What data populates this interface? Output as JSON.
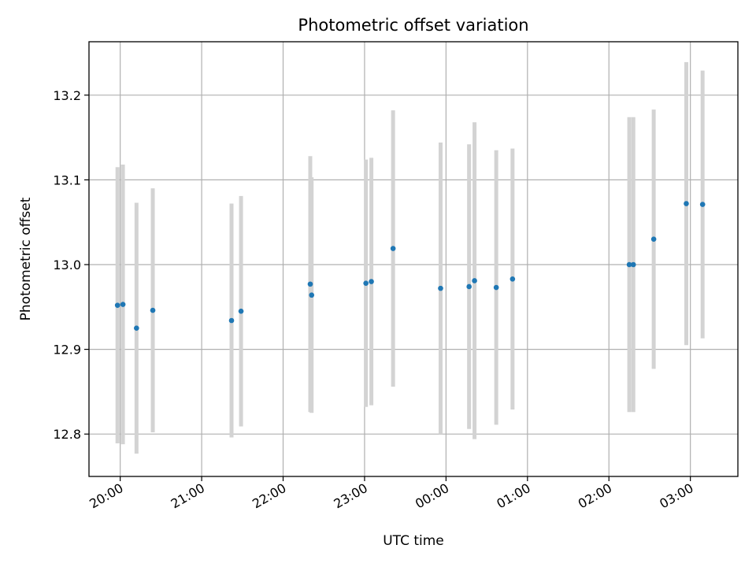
{
  "chart_data": {
    "type": "scatter",
    "title": "Photometric offset variation",
    "xlabel": "UTC time",
    "ylabel": "Photometric offset",
    "grid": true,
    "xlim": [
      "19:37",
      "27:35"
    ],
    "ylim": [
      12.75,
      13.263
    ],
    "x_ticks": [
      "20:00",
      "21:00",
      "22:00",
      "23:00",
      "00:00",
      "01:00",
      "02:00",
      "03:00"
    ],
    "y_ticks": [
      "12.8",
      "12.9",
      "13.0",
      "13.1",
      "13.2"
    ],
    "colors": {
      "points": "#1f77b4",
      "error_bars": "#d3d3d3"
    },
    "series": [
      {
        "x": [
          "19:58",
          "20:02",
          "20:12",
          "20:24",
          "21:22",
          "21:29",
          "22:20",
          "22:21",
          "23:01",
          "23:05",
          "23:21",
          "23:56",
          "00:17",
          "00:21",
          "00:37",
          "00:49",
          "02:15",
          "02:18",
          "02:33",
          "02:57",
          "03:09"
        ],
        "y": [
          12.952,
          12.953,
          12.925,
          12.946,
          12.934,
          12.945,
          12.977,
          12.964,
          12.978,
          12.98,
          13.019,
          12.972,
          12.974,
          12.981,
          12.973,
          12.983,
          13.0,
          13.0,
          13.03,
          13.072,
          13.071
        ],
        "yerr": [
          0.163,
          0.165,
          0.148,
          0.144,
          0.138,
          0.136,
          0.151,
          0.139,
          0.146,
          0.146,
          0.163,
          0.172,
          0.168,
          0.187,
          0.162,
          0.154,
          0.174,
          0.174,
          0.153,
          0.167,
          0.158
        ]
      }
    ]
  }
}
